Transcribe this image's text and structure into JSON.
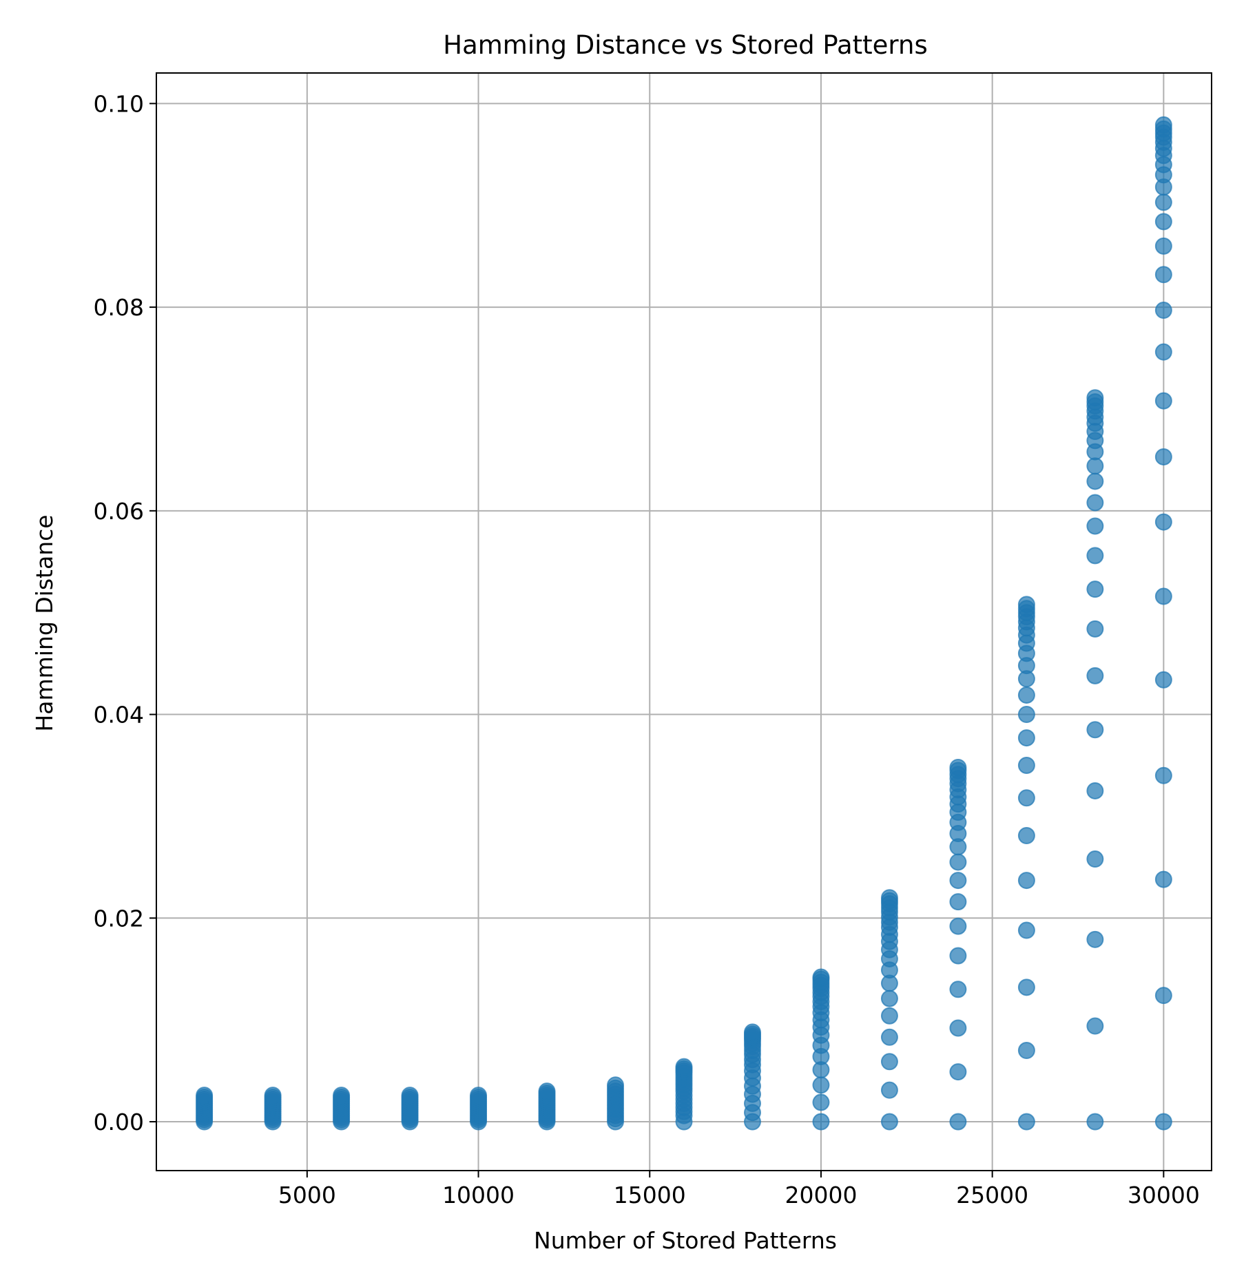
{
  "chart_data": {
    "type": "scatter",
    "title": "Hamming Distance vs Stored Patterns",
    "xlabel": "Number of Stored Patterns",
    "ylabel": "Hamming Distance",
    "xlim": [
      600,
      31400
    ],
    "ylim": [
      -0.0048,
      0.103
    ],
    "x_ticks": [
      5000,
      10000,
      15000,
      20000,
      25000,
      30000
    ],
    "x_tick_labels": [
      "5000",
      "10000",
      "15000",
      "20000",
      "25000",
      "30000"
    ],
    "y_ticks": [
      0.0,
      0.02,
      0.04,
      0.06,
      0.08,
      0.1
    ],
    "y_tick_labels": [
      "0.00",
      "0.02",
      "0.04",
      "0.06",
      "0.08",
      "0.10"
    ],
    "grid": true,
    "marker_color": "#1f77b4",
    "marker_alpha": 0.7,
    "series": [
      {
        "points_by_x": [
          {
            "x": 2000,
            "y": [
              0,
              0.0002,
              0.0004,
              0.0006,
              0.0008,
              0.001,
              0.0012,
              0.0014,
              0.0016,
              0.0018,
              0.002,
              0.0022,
              0.0024,
              0.0026
            ]
          },
          {
            "x": 4000,
            "y": [
              0,
              0.0002,
              0.0004,
              0.0006,
              0.0008,
              0.001,
              0.0012,
              0.0014,
              0.0016,
              0.0018,
              0.002,
              0.0022,
              0.0024,
              0.0026
            ]
          },
          {
            "x": 6000,
            "y": [
              0,
              0.0002,
              0.0004,
              0.0006,
              0.0008,
              0.001,
              0.0012,
              0.0014,
              0.0016,
              0.0018,
              0.002,
              0.0022,
              0.0024,
              0.0026
            ]
          },
          {
            "x": 8000,
            "y": [
              0,
              0.0002,
              0.0004,
              0.0006,
              0.0008,
              0.001,
              0.0012,
              0.0014,
              0.0016,
              0.0018,
              0.002,
              0.0022,
              0.0024,
              0.0026
            ]
          },
          {
            "x": 10000,
            "y": [
              0,
              0.0002,
              0.0004,
              0.0006,
              0.0008,
              0.001,
              0.0012,
              0.0014,
              0.0016,
              0.0018,
              0.002,
              0.0022,
              0.0024,
              0.0026
            ]
          },
          {
            "x": 12000,
            "y": [
              0,
              0.0002,
              0.0004,
              0.0006,
              0.0008,
              0.001,
              0.0012,
              0.0014,
              0.0016,
              0.0018,
              0.002,
              0.0022,
              0.0024,
              0.0026,
              0.0028,
              0.003
            ]
          },
          {
            "x": 14000,
            "y": [
              0,
              0.0003,
              0.0006,
              0.0009,
              0.0012,
              0.0015,
              0.0018,
              0.0021,
              0.0024,
              0.0027,
              0.003,
              0.0033,
              0.0036
            ]
          },
          {
            "x": 16000,
            "y": [
              0,
              0.0006,
              0.001,
              0.0014,
              0.0018,
              0.0022,
              0.0026,
              0.003,
              0.0033,
              0.0036,
              0.0039,
              0.0042,
              0.0045,
              0.0048,
              0.005,
              0.0052,
              0.0054
            ]
          },
          {
            "x": 18000,
            "y": [
              0,
              0.0009,
              0.0018,
              0.0027,
              0.0035,
              0.0043,
              0.005,
              0.0056,
              0.0061,
              0.0066,
              0.007,
              0.0074,
              0.0077,
              0.008,
              0.0082,
              0.0084,
              0.0086,
              0.0088
            ]
          },
          {
            "x": 20000,
            "y": [
              0,
              0.0019,
              0.0036,
              0.0051,
              0.0064,
              0.0075,
              0.0085,
              0.0093,
              0.01,
              0.0107,
              0.0113,
              0.0118,
              0.0123,
              0.0127,
              0.0131,
              0.0134,
              0.0137,
              0.014,
              0.0142
            ]
          },
          {
            "x": 22000,
            "y": [
              0,
              0.0031,
              0.0059,
              0.0083,
              0.0104,
              0.0121,
              0.0136,
              0.0149,
              0.016,
              0.0169,
              0.0177,
              0.0184,
              0.0191,
              0.0196,
              0.0201,
              0.0206,
              0.021,
              0.0214,
              0.0217,
              0.022
            ]
          },
          {
            "x": 24000,
            "y": [
              0,
              0.0049,
              0.0092,
              0.013,
              0.0163,
              0.0192,
              0.0216,
              0.0237,
              0.0255,
              0.027,
              0.0283,
              0.0294,
              0.0304,
              0.0312,
              0.0319,
              0.0326,
              0.0332,
              0.0337,
              0.0341,
              0.0345,
              0.0348
            ]
          },
          {
            "x": 26000,
            "y": [
              0,
              0.007,
              0.0132,
              0.0188,
              0.0237,
              0.0281,
              0.0318,
              0.035,
              0.0377,
              0.04,
              0.0419,
              0.0435,
              0.0448,
              0.046,
              0.047,
              0.0478,
              0.0485,
              0.0491,
              0.0496,
              0.05,
              0.0504,
              0.0508
            ]
          },
          {
            "x": 28000,
            "y": [
              0,
              0.0094,
              0.0179,
              0.0258,
              0.0325,
              0.0385,
              0.0438,
              0.0484,
              0.0523,
              0.0556,
              0.0585,
              0.0608,
              0.0629,
              0.0644,
              0.0658,
              0.0669,
              0.0678,
              0.0686,
              0.0692,
              0.0698,
              0.0703,
              0.0707,
              0.0711
            ]
          },
          {
            "x": 30000,
            "y": [
              0,
              0.0124,
              0.0238,
              0.034,
              0.0434,
              0.0516,
              0.0589,
              0.0653,
              0.0708,
              0.0756,
              0.0797,
              0.0832,
              0.086,
              0.0884,
              0.0903,
              0.0918,
              0.093,
              0.094,
              0.0949,
              0.0956,
              0.0962,
              0.0967,
              0.0971,
              0.0975,
              0.0979
            ]
          }
        ]
      }
    ]
  }
}
